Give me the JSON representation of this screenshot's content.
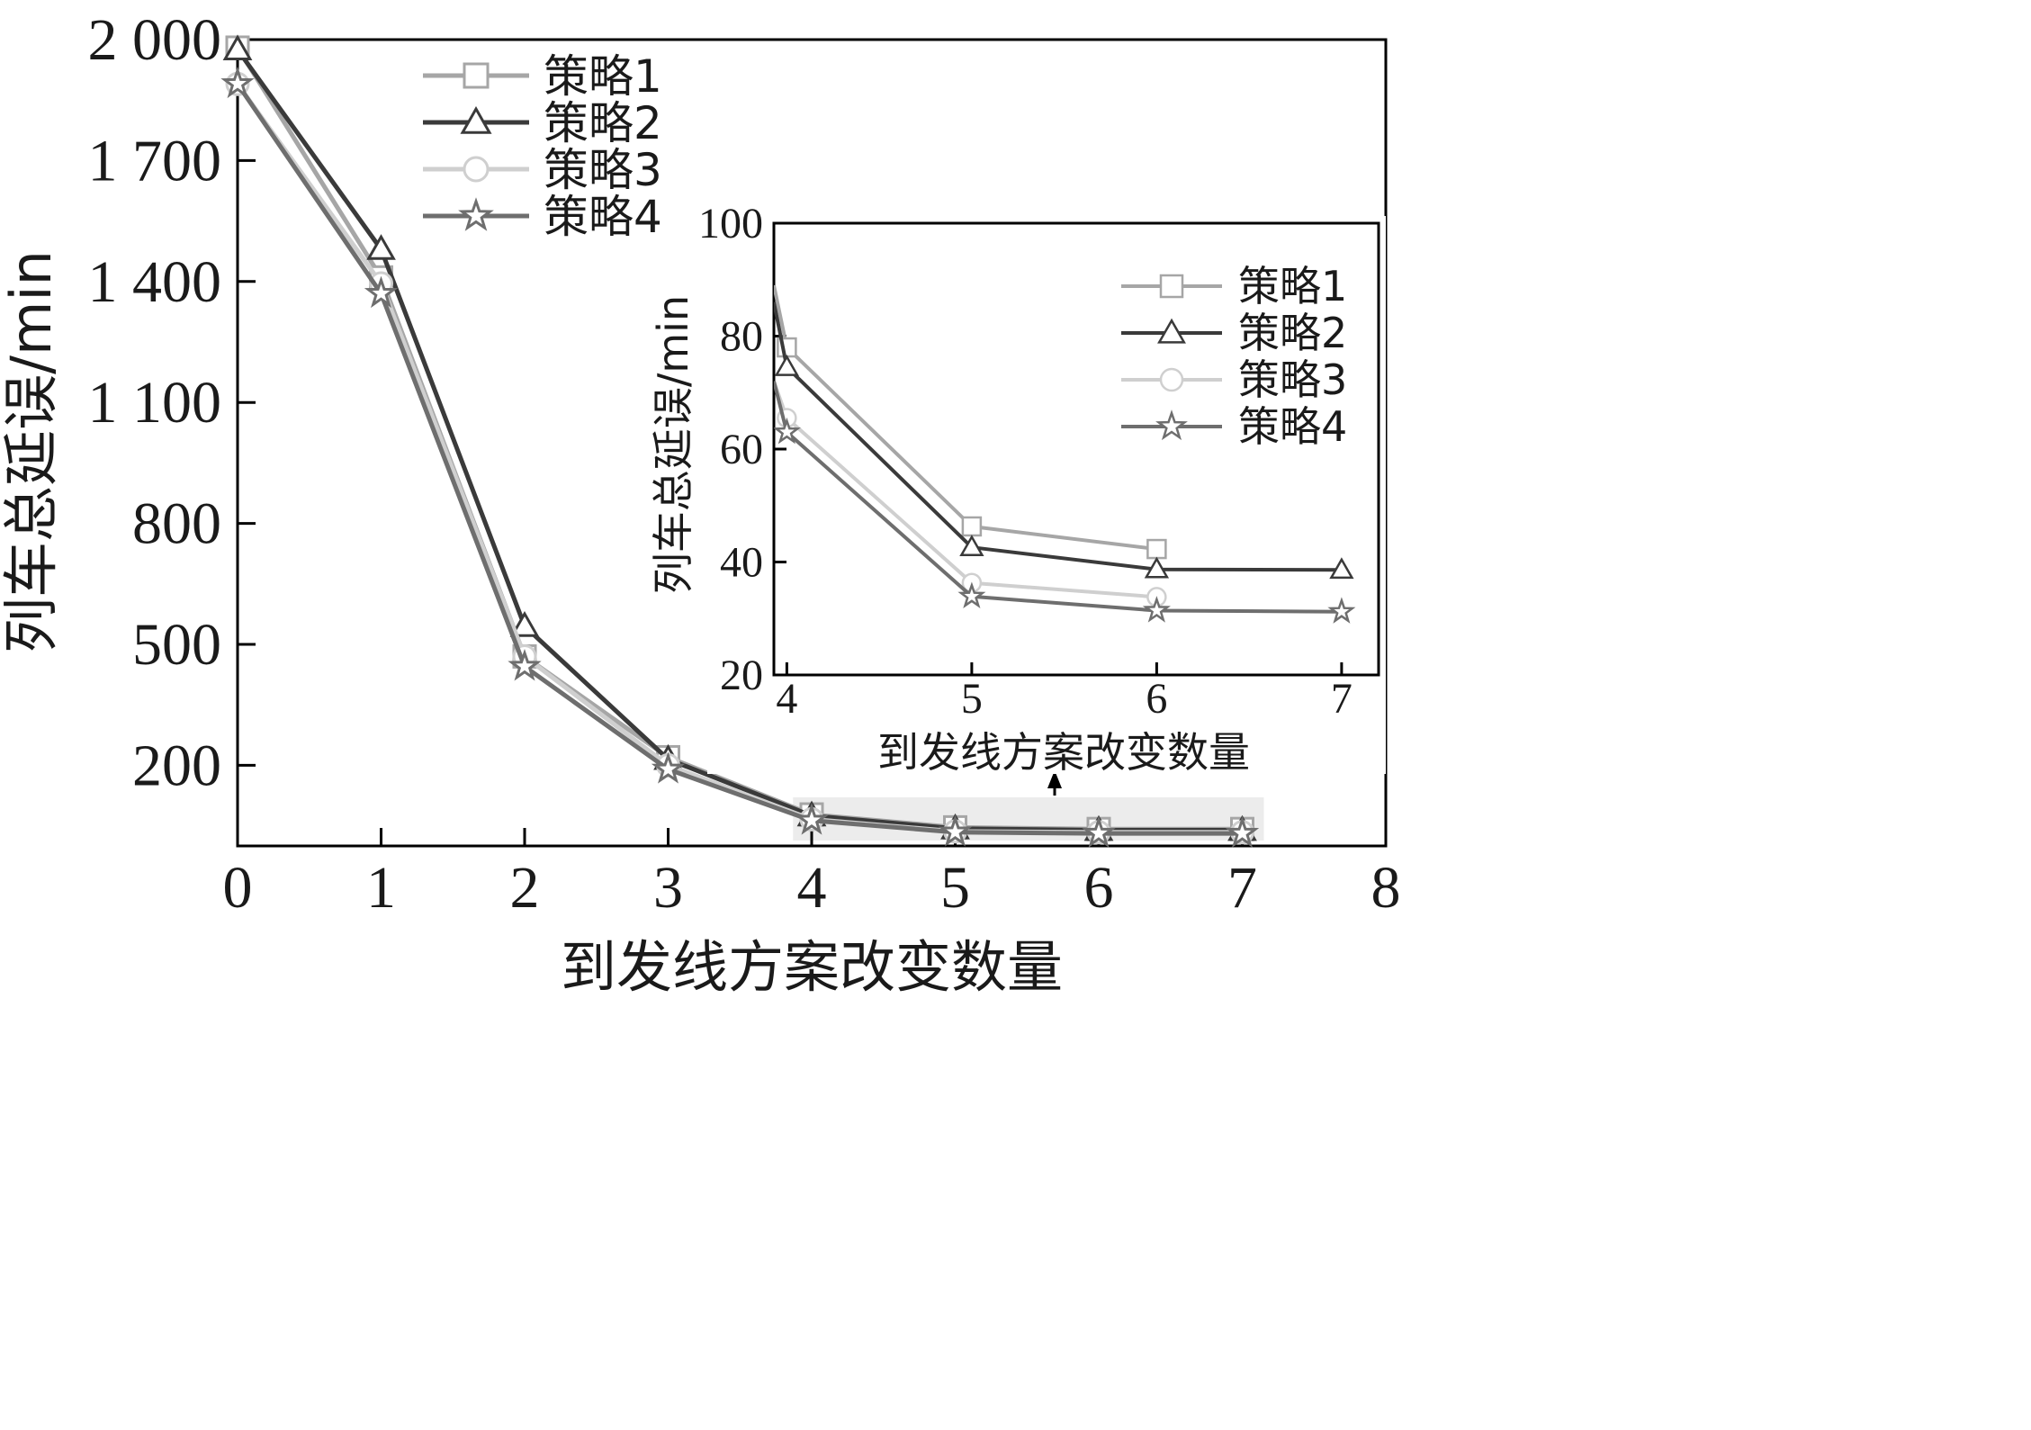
{
  "chart_data": [
    {
      "type": "line",
      "title": "",
      "xlabel": "到发线方案改变数量",
      "ylabel": "列车总延误/min",
      "xlim": [
        0,
        8
      ],
      "ylim": [
        0,
        2000
      ],
      "xticks": [
        0,
        1,
        2,
        3,
        4,
        5,
        6,
        7,
        8
      ],
      "yticks": [
        200,
        500,
        800,
        1100,
        1400,
        1700,
        2000
      ],
      "ytick_labels": [
        "200",
        "500",
        "800",
        "1 100",
        "1 400",
        "1 700",
        "2 000"
      ],
      "legend_position": "top-left",
      "grid": false,
      "series": [
        {
          "name": "策略1",
          "marker": "square",
          "color": "#a6a6a6",
          "x": [
            0,
            1,
            2,
            3,
            4,
            5,
            6,
            7
          ],
          "y": [
            1980,
            1410,
            470,
            220,
            78,
            46,
            42,
            42
          ]
        },
        {
          "name": "策略2",
          "marker": "triangle",
          "color": "#3a3a3a",
          "x": [
            0,
            1,
            2,
            3,
            4,
            5,
            6,
            7
          ],
          "y": [
            1975,
            1480,
            545,
            215,
            75,
            43,
            39,
            39
          ]
        },
        {
          "name": "策略3",
          "marker": "circle",
          "color": "#cfcfcf",
          "x": [
            0,
            1,
            2,
            3,
            4,
            5,
            6,
            7
          ],
          "y": [
            1890,
            1395,
            470,
            200,
            66,
            36,
            34,
            34
          ]
        },
        {
          "name": "策略4",
          "marker": "star",
          "color": "#6e6e6e",
          "x": [
            0,
            1,
            2,
            3,
            4,
            5,
            6,
            7
          ],
          "y": [
            1890,
            1370,
            445,
            190,
            63,
            34,
            31,
            31
          ]
        }
      ]
    },
    {
      "type": "line",
      "title": "",
      "xlabel": "到发线方案改变数量",
      "ylabel": "列车总延误/min",
      "xlim": [
        3.93,
        7.2
      ],
      "ylim": [
        20,
        100
      ],
      "xticks": [
        4,
        5,
        6,
        7
      ],
      "yticks": [
        20,
        40,
        60,
        80,
        100
      ],
      "legend_position": "top-right",
      "grid": false,
      "series": [
        {
          "name": "策略1",
          "marker": "square",
          "color": "#a6a6a6",
          "x": [
            3.93,
            4,
            5,
            6
          ],
          "y": [
            89,
            78,
            46.3,
            42.3
          ]
        },
        {
          "name": "策略2",
          "marker": "triangle",
          "color": "#3a3a3a",
          "x": [
            3.93,
            4,
            5,
            6,
            7
          ],
          "y": [
            86,
            74.5,
            42.6,
            38.7,
            38.6
          ]
        },
        {
          "name": "策略3",
          "marker": "circle",
          "color": "#cfcfcf",
          "x": [
            3.93,
            4,
            5,
            6
          ],
          "y": [
            72,
            65.5,
            36.3,
            33.8
          ]
        },
        {
          "name": "策略4",
          "marker": "star",
          "color": "#6e6e6e",
          "x": [
            3.93,
            4,
            5,
            6,
            7
          ],
          "y": [
            72,
            63,
            33.9,
            31.4,
            31.2
          ]
        }
      ]
    }
  ]
}
